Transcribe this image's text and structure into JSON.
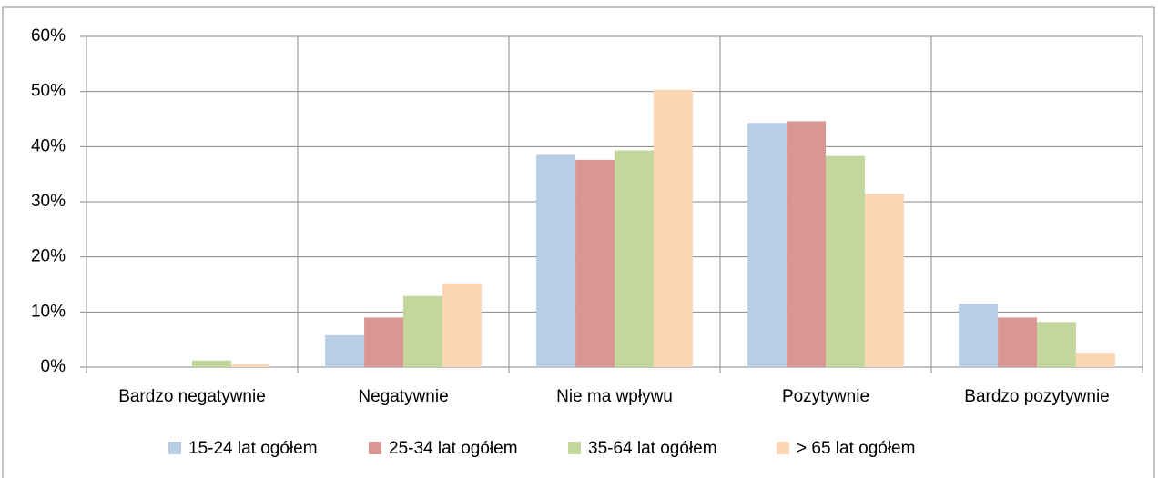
{
  "chart_data": {
    "type": "bar",
    "categories": [
      "Bardzo negatywnie",
      "Negatywnie",
      "Nie ma wpływu",
      "Pozytywnie",
      "Bardzo pozytywnie"
    ],
    "series": [
      {
        "name": "15-24 lat ogółem",
        "color": "#b9cde5",
        "values": [
          0,
          5.8,
          38.5,
          44.3,
          11.5
        ]
      },
      {
        "name": "25-34 lat ogółem",
        "color": "#d99694",
        "values": [
          0,
          9,
          37.6,
          44.6,
          9
        ]
      },
      {
        "name": "35-64 lat ogółem",
        "color": "#c3d69b",
        "values": [
          1.2,
          12.9,
          39.3,
          38.3,
          8.2
        ]
      },
      {
        "name": "> 65 lat ogółem",
        "color": "#fcd5b5",
        "values": [
          0.5,
          15.2,
          50.3,
          31.4,
          2.6
        ]
      }
    ],
    "ylim": [
      0,
      60
    ],
    "yticks": [
      {
        "value": 0,
        "label": "0%"
      },
      {
        "value": 10,
        "label": "10%"
      },
      {
        "value": 20,
        "label": "20%"
      },
      {
        "value": 30,
        "label": "30%"
      },
      {
        "value": 40,
        "label": "40%"
      },
      {
        "value": 50,
        "label": "50%"
      },
      {
        "value": 60,
        "label": "60%"
      }
    ],
    "grid": true,
    "legend": "bottom"
  }
}
